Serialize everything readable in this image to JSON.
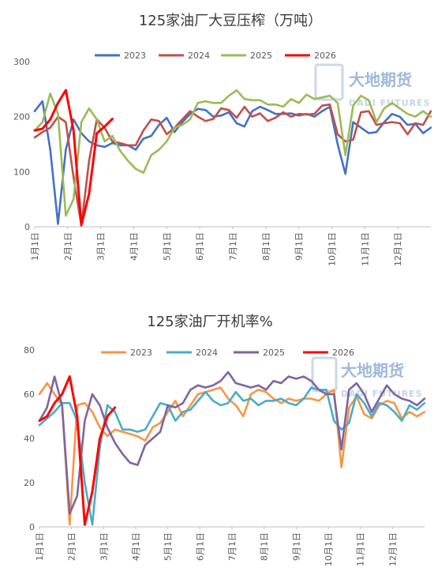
{
  "watermark": {
    "cn": "大地期货",
    "en": "DADI FUTURES"
  },
  "chart_data": [
    {
      "type": "line",
      "title": "125家油厂大豆压榨（万吨）",
      "ylim": [
        0,
        300
      ],
      "yticks": [
        "0",
        "100",
        "200",
        "300"
      ],
      "xticks": [
        "1月1日",
        "2月1日",
        "3月1日",
        "4月1日",
        "5月1日",
        "6月1日",
        "7月1日",
        "8月1日",
        "9月1日",
        "10月1日",
        "11月1日",
        "12月1日"
      ],
      "x_unit": "week (1-52)",
      "grid": false,
      "legend": "top",
      "series": [
        {
          "name": "2023",
          "color": "#4472C4",
          "x": [
            1,
            2,
            3,
            4,
            5,
            6,
            7,
            8,
            9,
            10,
            11,
            12,
            13,
            14,
            15,
            16,
            17,
            18,
            19,
            20,
            21,
            22,
            23,
            24,
            25,
            26,
            27,
            28,
            29,
            30,
            31,
            32,
            33,
            34,
            35,
            36,
            37,
            38,
            39,
            40,
            41,
            42,
            43,
            44,
            45,
            46,
            47,
            48,
            49,
            50,
            51,
            52
          ],
          "values": [
            210,
            228,
            140,
            5,
            140,
            195,
            170,
            155,
            148,
            145,
            152,
            148,
            148,
            140,
            160,
            165,
            185,
            198,
            172,
            190,
            205,
            214,
            212,
            200,
            202,
            208,
            188,
            182,
            210,
            218,
            212,
            205,
            205,
            206,
            202,
            205,
            200,
            210,
            218,
            150,
            96,
            190,
            180,
            170,
            172,
            190,
            205,
            200,
            185,
            187,
            170,
            180
          ]
        },
        {
          "name": "2024",
          "color": "#C0504D",
          "x": [
            1,
            2,
            3,
            4,
            5,
            6,
            7,
            8,
            9,
            10,
            11,
            12,
            13,
            14,
            15,
            16,
            17,
            18,
            19,
            20,
            21,
            22,
            23,
            24,
            25,
            26,
            27,
            28,
            29,
            30,
            31,
            32,
            33,
            34,
            35,
            36,
            37,
            38,
            39,
            40,
            41,
            42,
            43,
            44,
            45,
            46,
            47,
            48,
            49,
            50,
            51,
            52
          ],
          "values": [
            162,
            172,
            180,
            200,
            190,
            90,
            2,
            120,
            195,
            180,
            155,
            152,
            148,
            148,
            175,
            195,
            192,
            168,
            180,
            195,
            210,
            200,
            192,
            196,
            215,
            212,
            198,
            218,
            200,
            206,
            192,
            198,
            208,
            200,
            205,
            204,
            205,
            220,
            222,
            168,
            155,
            158,
            208,
            210,
            185,
            188,
            190,
            188,
            168,
            188,
            185,
            210
          ]
        },
        {
          "name": "2025",
          "color": "#9BBB59",
          "x": [
            1,
            2,
            3,
            4,
            5,
            6,
            7,
            8,
            9,
            10,
            11,
            12,
            13,
            14,
            15,
            16,
            17,
            18,
            19,
            20,
            21,
            22,
            23,
            24,
            25,
            26,
            27,
            28,
            29,
            30,
            31,
            32,
            33,
            34,
            35,
            36,
            37,
            38,
            39,
            40,
            41,
            42,
            43,
            44,
            45,
            46,
            47,
            48,
            49,
            50,
            51,
            52
          ],
          "values": [
            175,
            190,
            242,
            205,
            20,
            50,
            190,
            215,
            195,
            155,
            165,
            138,
            120,
            105,
            98,
            130,
            140,
            155,
            180,
            185,
            195,
            225,
            228,
            225,
            225,
            238,
            248,
            232,
            230,
            230,
            222,
            222,
            218,
            232,
            225,
            240,
            232,
            235,
            238,
            225,
            130,
            220,
            238,
            230,
            190,
            215,
            225,
            215,
            205,
            200,
            210,
            200
          ]
        },
        {
          "name": "2026",
          "color": "#FF0000",
          "x": [
            1,
            2,
            3,
            4,
            5,
            6,
            7,
            8,
            9,
            10,
            11
          ],
          "values": [
            175,
            178,
            195,
            225,
            248,
            175,
            3,
            60,
            170,
            182,
            196
          ]
        }
      ]
    },
    {
      "type": "line",
      "title": "125家油厂开机率%",
      "ylim": [
        0,
        80
      ],
      "yticks": [
        "0",
        "20",
        "40",
        "60",
        "80"
      ],
      "xticks": [
        "1月1日",
        "2月1日",
        "3月1日",
        "4月1日",
        "5月1日",
        "6月1日",
        "7月1日",
        "8月1日",
        "9月1日",
        "10月1日",
        "11月1日",
        "12月1日"
      ],
      "x_unit": "week (1-52)",
      "grid": false,
      "legend": "top",
      "series": [
        {
          "name": "2023",
          "color": "#F79646",
          "x": [
            1,
            2,
            3,
            4,
            5,
            6,
            7,
            8,
            9,
            10,
            11,
            12,
            13,
            14,
            15,
            16,
            17,
            18,
            19,
            20,
            21,
            22,
            23,
            24,
            25,
            26,
            27,
            28,
            29,
            30,
            31,
            32,
            33,
            34,
            35,
            36,
            37,
            38,
            39,
            40,
            41,
            42,
            43,
            44,
            45,
            46,
            47,
            48,
            49,
            50,
            51,
            52
          ],
          "values": [
            60,
            65,
            60,
            55,
            1,
            55,
            56,
            52,
            45,
            41,
            44,
            43,
            42,
            41,
            39,
            45,
            47,
            52,
            57,
            50,
            55,
            60,
            61,
            62,
            63,
            58,
            55,
            50,
            60,
            62,
            61,
            58,
            56,
            58,
            57,
            58,
            58,
            57,
            60,
            62,
            27,
            54,
            59,
            51,
            49,
            55,
            57,
            56,
            49,
            52,
            50,
            52
          ]
        },
        {
          "name": "2024",
          "color": "#4BACC6",
          "x": [
            1,
            2,
            3,
            4,
            5,
            6,
            7,
            8,
            9,
            10,
            11,
            12,
            13,
            14,
            15,
            16,
            17,
            18,
            19,
            20,
            21,
            22,
            23,
            24,
            25,
            26,
            27,
            28,
            29,
            30,
            31,
            32,
            33,
            34,
            35,
            36,
            37,
            38,
            39,
            40,
            41,
            42,
            43,
            44,
            45,
            46,
            47,
            48,
            49,
            50,
            51,
            52
          ],
          "values": [
            46,
            49,
            52,
            56,
            56,
            48,
            20,
            1,
            36,
            55,
            52,
            44,
            44,
            43,
            44,
            50,
            56,
            55,
            48,
            52,
            53,
            57,
            61,
            57,
            55,
            56,
            61,
            57,
            58,
            55,
            57,
            57,
            58,
            56,
            55,
            58,
            63,
            62,
            62,
            48,
            44,
            47,
            60,
            56,
            50,
            56,
            55,
            52,
            48,
            55,
            53,
            56
          ]
        },
        {
          "name": "2025",
          "color": "#8064A2",
          "x": [
            1,
            2,
            3,
            4,
            5,
            6,
            7,
            8,
            9,
            10,
            11,
            12,
            13,
            14,
            15,
            16,
            17,
            18,
            19,
            20,
            21,
            22,
            23,
            24,
            25,
            26,
            27,
            28,
            29,
            30,
            31,
            32,
            33,
            34,
            35,
            36,
            37,
            38,
            39,
            40,
            41,
            42,
            43,
            44,
            45,
            46,
            47,
            48,
            49,
            50,
            51,
            52
          ],
          "values": [
            48,
            54,
            68,
            55,
            6,
            14,
            48,
            60,
            55,
            45,
            38,
            33,
            29,
            28,
            37,
            40,
            43,
            55,
            54,
            56,
            62,
            64,
            63,
            64,
            66,
            70,
            65,
            64,
            63,
            64,
            62,
            66,
            65,
            68,
            67,
            68,
            66,
            62,
            60,
            60,
            35,
            62,
            65,
            60,
            52,
            58,
            64,
            60,
            58,
            57,
            55,
            58
          ]
        },
        {
          "name": "2026",
          "color": "#FF0000",
          "x": [
            1,
            2,
            3,
            4,
            5,
            6,
            7,
            8,
            9,
            10,
            11
          ],
          "values": [
            48,
            50,
            56,
            60,
            68,
            50,
            1,
            16,
            40,
            50,
            54
          ]
        }
      ]
    }
  ]
}
